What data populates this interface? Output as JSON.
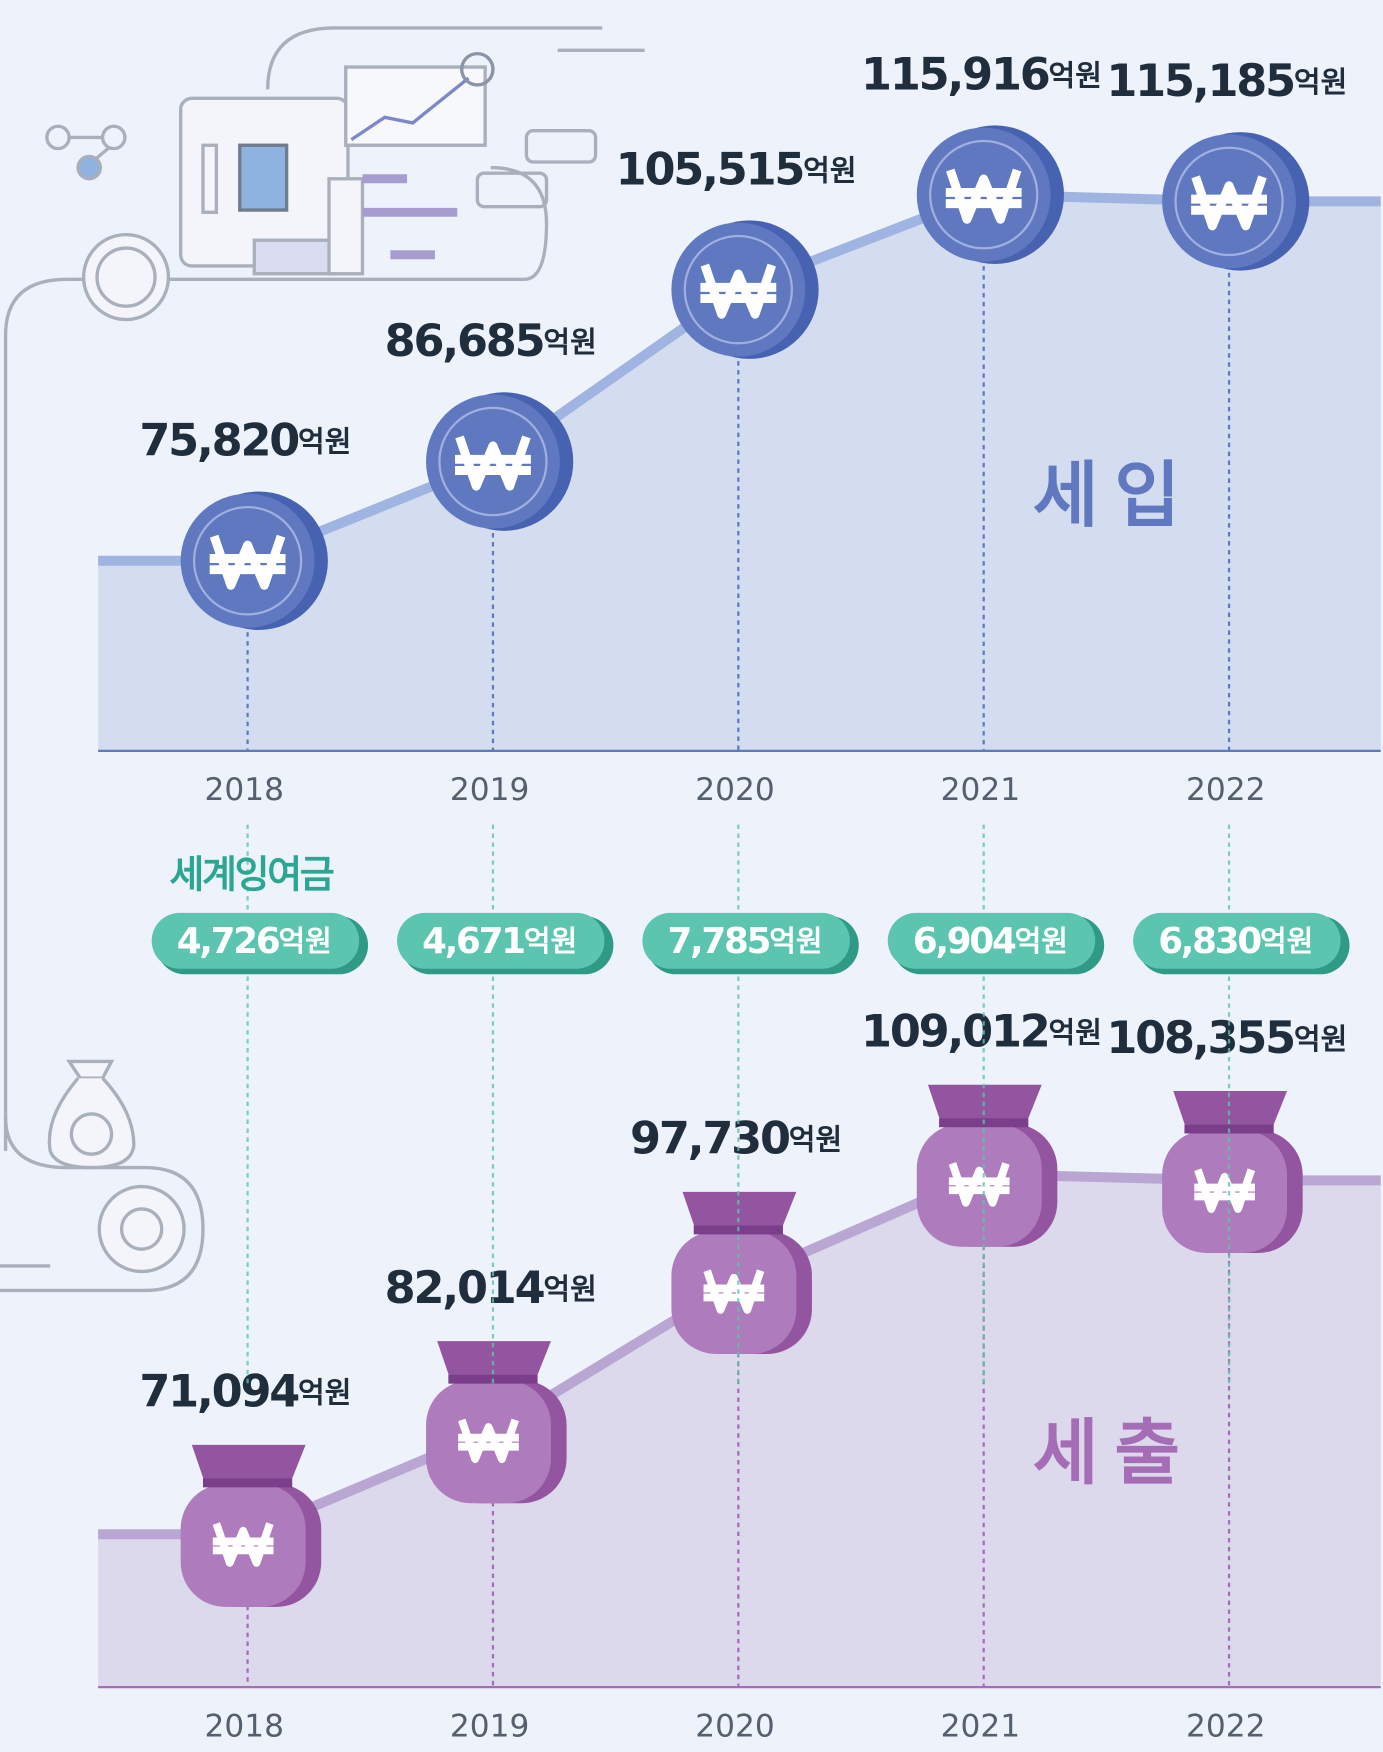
{
  "chart_data": [
    {
      "type": "line",
      "title": "세 입",
      "categories": [
        "2018",
        "2019",
        "2020",
        "2021",
        "2022"
      ],
      "values": [
        75820,
        86685,
        105515,
        115916,
        115185
      ],
      "value_labels": [
        "75,820",
        "86,685",
        "105,515",
        "115,916",
        "115,185"
      ],
      "unit": "억원",
      "color": "#5f78c0",
      "line_color": "#9fb4e0",
      "area_color": "#d4ddf0",
      "ylim": [
        55000,
        125000
      ]
    },
    {
      "type": "line",
      "title": "세 출",
      "categories": [
        "2018",
        "2019",
        "2020",
        "2021",
        "2022"
      ],
      "values": [
        71094,
        82014,
        97730,
        109012,
        108355
      ],
      "value_labels": [
        "71,094",
        "82,014",
        "97,730",
        "109,012",
        "108,355"
      ],
      "unit": "억원",
      "color": "#a56db6",
      "line_color": "#b9a6d3",
      "area_color": "#dcd9ec",
      "ylim": [
        55000,
        115000
      ]
    }
  ],
  "surplus": {
    "title": "세계잉여금",
    "values": [
      4726,
      4671,
      7785,
      6904,
      6830
    ],
    "value_labels": [
      "4,726",
      "4,671",
      "7,785",
      "6,904",
      "6,830"
    ],
    "unit": "억원",
    "color": "#5cc5b0"
  }
}
